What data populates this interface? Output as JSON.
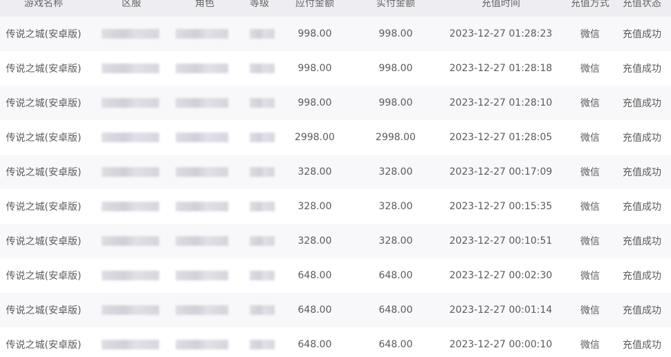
{
  "columns": [
    "游戏名称",
    "区服",
    "角色",
    "等级",
    "应付金额",
    "实付金额",
    "充值时间",
    "充值方式",
    "充值状态"
  ],
  "rows": [
    {
      "game": "传说之城(安卓版)",
      "payable": "998.00",
      "paid": "998.00",
      "time": "2023-12-27 01:28:23",
      "method": "微信",
      "status": "充值成功"
    },
    {
      "game": "传说之城(安卓版)",
      "payable": "998.00",
      "paid": "998.00",
      "time": "2023-12-27 01:28:18",
      "method": "微信",
      "status": "充值成功"
    },
    {
      "game": "传说之城(安卓版)",
      "payable": "998.00",
      "paid": "998.00",
      "time": "2023-12-27 01:28:10",
      "method": "微信",
      "status": "充值成功"
    },
    {
      "game": "传说之城(安卓版)",
      "payable": "2998.00",
      "paid": "2998.00",
      "time": "2023-12-27 01:28:05",
      "method": "微信",
      "status": "充值成功"
    },
    {
      "game": "传说之城(安卓版)",
      "payable": "328.00",
      "paid": "328.00",
      "time": "2023-12-27 00:17:09",
      "method": "微信",
      "status": "充值成功"
    },
    {
      "game": "传说之城(安卓版)",
      "payable": "328.00",
      "paid": "328.00",
      "time": "2023-12-27 00:15:35",
      "method": "微信",
      "status": "充值成功"
    },
    {
      "game": "传说之城(安卓版)",
      "payable": "328.00",
      "paid": "328.00",
      "time": "2023-12-27 00:10:51",
      "method": "微信",
      "status": "充值成功"
    },
    {
      "game": "传说之城(安卓版)",
      "payable": "648.00",
      "paid": "648.00",
      "time": "2023-12-27 00:02:30",
      "method": "微信",
      "status": "充值成功"
    },
    {
      "game": "传说之城(安卓版)",
      "payable": "648.00",
      "paid": "648.00",
      "time": "2023-12-27 00:01:14",
      "method": "微信",
      "status": "充值成功"
    },
    {
      "game": "传说之城(安卓版)",
      "payable": "648.00",
      "paid": "648.00",
      "time": "2023-12-27 00:00:10",
      "method": "微信",
      "status": "充值成功"
    }
  ]
}
